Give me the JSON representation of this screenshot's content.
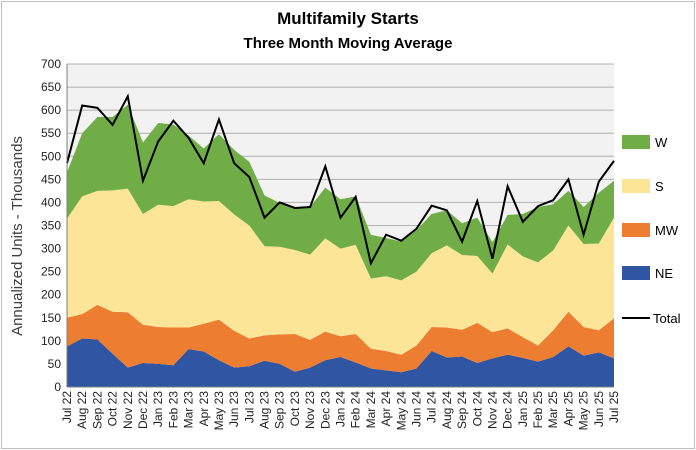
{
  "chart_data": {
    "type": "area",
    "stacked": true,
    "title": "Multifamily  Starts",
    "subtitle": "Three Month Moving Average",
    "ylabel": "Annualized Units - Thousands",
    "xlabel": "",
    "ylim": [
      0,
      700
    ],
    "yticks": [
      0,
      50,
      100,
      150,
      200,
      250,
      300,
      350,
      400,
      450,
      500,
      550,
      600,
      650,
      700
    ],
    "grid": true,
    "legend_position": "right",
    "categories": [
      "Jul 22",
      "Aug 22",
      "Sep 22",
      "Oct 22",
      "Nov 22",
      "Dec 22",
      "Jan 23",
      "Feb 23",
      "Mar 23",
      "Apr 23",
      "May 23",
      "Jun 23",
      "Jul 23",
      "Aug 23",
      "Sep 23",
      "Oct 23",
      "Nov 23",
      "Dec 23",
      "Jan 24",
      "Feb 24",
      "Mar 24",
      "Apr 24",
      "May 24",
      "Jun 24",
      "Jul 24",
      "Aug 24",
      "Sep 24",
      "Oct 24",
      "Nov 24",
      "Dec 24",
      "Jan 25",
      "Feb 25",
      "Mar 25",
      "Apr 25",
      "May 25",
      "Jun 25",
      "Jul 25"
    ],
    "series": [
      {
        "name": "NE",
        "color": "#2f55a3",
        "values": [
          88,
          105,
          103,
          72,
          42,
          52,
          50,
          47,
          82,
          77,
          58,
          42,
          45,
          57,
          50,
          33,
          42,
          58,
          65,
          53,
          40,
          36,
          32,
          40,
          78,
          64,
          66,
          52,
          62,
          70,
          63,
          55,
          65,
          88,
          68,
          75,
          62
        ]
      },
      {
        "name": "MW",
        "color": "#ed7d31",
        "values": [
          62,
          53,
          75,
          91,
          120,
          83,
          80,
          82,
          47,
          60,
          88,
          80,
          60,
          55,
          64,
          82,
          60,
          62,
          45,
          62,
          43,
          42,
          38,
          50,
          52,
          65,
          58,
          87,
          57,
          57,
          45,
          35,
          58,
          75,
          62,
          48,
          87
        ]
      },
      {
        "name": "S",
        "color": "#fde598",
        "values": [
          215,
          255,
          247,
          263,
          268,
          240,
          265,
          263,
          278,
          265,
          257,
          252,
          245,
          193,
          190,
          182,
          185,
          202,
          190,
          193,
          152,
          162,
          161,
          160,
          160,
          178,
          162,
          145,
          127,
          182,
          175,
          180,
          173,
          187,
          180,
          188,
          218
        ]
      },
      {
        "name": "W",
        "color": "#70ad47",
        "values": [
          100,
          137,
          160,
          159,
          182,
          155,
          177,
          177,
          138,
          115,
          145,
          140,
          138,
          110,
          95,
          93,
          103,
          110,
          107,
          105,
          95,
          83,
          84,
          90,
          85,
          76,
          69,
          83,
          68,
          64,
          92,
          120,
          100,
          75,
          80,
          110,
          80
        ]
      }
    ],
    "total": {
      "name": "Total",
      "color": "#000000",
      "values": [
        485,
        610,
        605,
        568,
        630,
        447,
        532,
        577,
        540,
        485,
        580,
        485,
        455,
        367,
        400,
        388,
        390,
        478,
        367,
        412,
        268,
        330,
        317,
        343,
        393,
        383,
        315,
        403,
        278,
        435,
        358,
        392,
        405,
        450,
        330,
        445,
        490
      ]
    },
    "legend_order": [
      "W",
      "S",
      "MW",
      "NE",
      "Total"
    ]
  }
}
